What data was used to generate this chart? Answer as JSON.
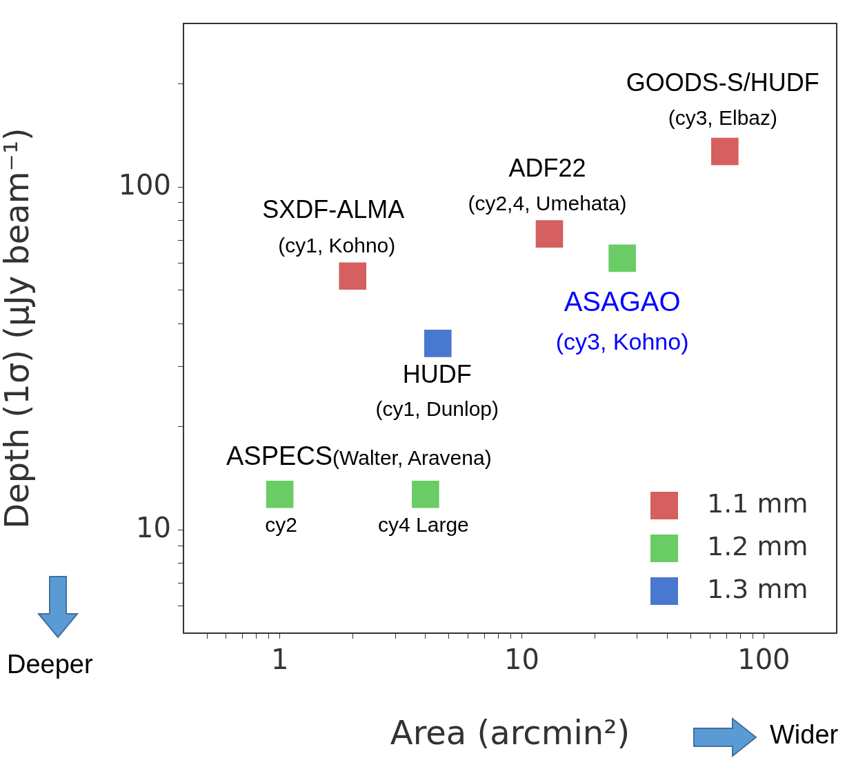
{
  "chart_data": {
    "type": "scatter",
    "xlabel": "Area (arcmin²)",
    "ylabel": "Depth (1σ) (μJy beam⁻¹)",
    "log": "xy",
    "marker": "square",
    "legend": "bottom right",
    "xlim": [
      0.4,
      200
    ],
    "ylim": [
      5,
      300
    ],
    "xticks": [
      {
        "value": 0.5,
        "label": null
      },
      {
        "value": 0.6,
        "label": null
      },
      {
        "value": 0.7,
        "label": null
      },
      {
        "value": 0.8,
        "label": null
      },
      {
        "value": 0.9,
        "label": null
      },
      1,
      {
        "value": 2,
        "label": null
      },
      {
        "value": 3,
        "label": null
      },
      {
        "value": 4,
        "label": null
      },
      {
        "value": 5,
        "label": null
      },
      {
        "value": 6,
        "label": null
      },
      {
        "value": 7,
        "label": null
      },
      {
        "value": 8,
        "label": null
      },
      {
        "value": 9,
        "label": null
      },
      10,
      {
        "value": 20,
        "label": null
      },
      {
        "value": 30,
        "label": null
      },
      {
        "value": 40,
        "label": null
      },
      {
        "value": 50,
        "label": null
      },
      {
        "value": 60,
        "label": null
      },
      {
        "value": 70,
        "label": null
      },
      {
        "value": 80,
        "label": null
      },
      {
        "value": 90,
        "label": null
      },
      100
    ],
    "yticks": [
      {
        "value": 6,
        "label": null
      },
      {
        "value": 7,
        "label": null
      },
      {
        "value": 8,
        "label": null
      },
      {
        "value": 9,
        "label": null
      },
      10,
      {
        "value": 20,
        "label": null
      },
      {
        "value": 30,
        "label": null
      },
      {
        "value": 40,
        "label": null
      },
      {
        "value": 50,
        "label": null
      },
      {
        "value": 60,
        "label": null
      },
      {
        "value": 70,
        "label": null
      },
      {
        "value": 80,
        "label": null
      },
      {
        "value": 90,
        "label": null
      },
      100,
      {
        "value": 200,
        "label": null
      }
    ],
    "series": [
      {
        "name": "1.1 mm",
        "color": "#d65f5f",
        "x": [
          2.0,
          13,
          69
        ],
        "values": [
          55,
          73,
          127
        ]
      },
      {
        "name": "1.2 mm",
        "color": "#6acc64",
        "x": [
          1,
          4,
          26
        ],
        "values": [
          12.7,
          12.7,
          62
        ]
      },
      {
        "name": "1.3 mm",
        "color": "#4878d0",
        "x": [
          4.5
        ],
        "values": [
          35
        ]
      }
    ],
    "annotations": [
      {
        "text": "GOODS-S/HUDF",
        "x": 69,
        "y": 127
      },
      {
        "text": "(cy3, Elbaz)",
        "x": 69,
        "y": 127
      },
      {
        "text": "ADF22",
        "x": 13,
        "y": 73
      },
      {
        "text": "(cy2,4, Umehata)",
        "x": 13,
        "y": 73
      },
      {
        "text": "SXDF-ALMA",
        "x": 2.0,
        "y": 55
      },
      {
        "text": "(cy1, Kohno)",
        "x": 2.0,
        "y": 55
      },
      {
        "text": "ASAGAO",
        "x": 26,
        "y": 62
      },
      {
        "text": "(cy3, Kohno)",
        "x": 26,
        "y": 62
      },
      {
        "text": "HUDF",
        "x": 4.5,
        "y": 35
      },
      {
        "text": "(cy1, Dunlop)",
        "x": 4.5,
        "y": 35
      },
      {
        "text": "cy2",
        "x": 1,
        "y": 12.7
      },
      {
        "text": "cy4 Large",
        "x": 4,
        "y": 12.7
      },
      "ASPECS",
      "(Walter, Aravena)",
      "Deeper",
      "Wider"
    ]
  }
}
